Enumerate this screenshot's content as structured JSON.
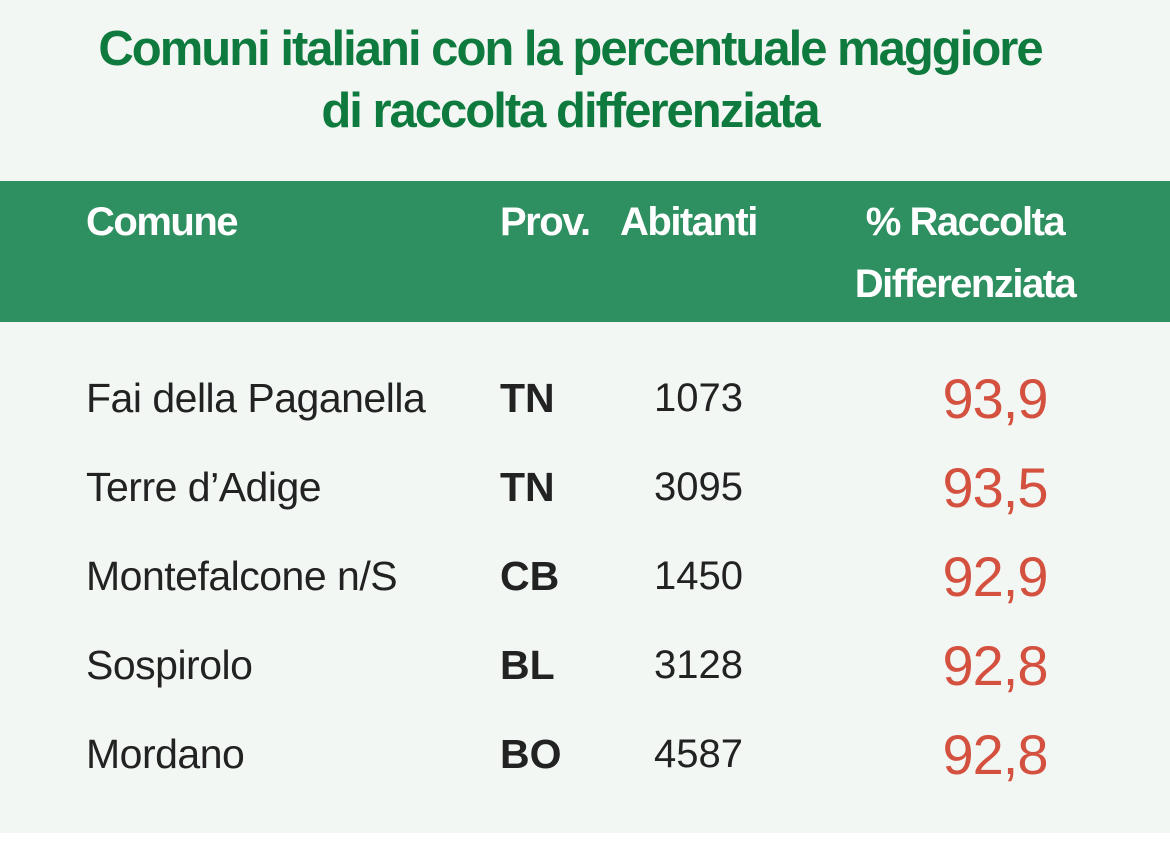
{
  "chart_data": {
    "type": "table",
    "title": "Comuni italiani con la percentuale maggiore di raccolta differenziata",
    "title_lines": [
      "Comuni italiani con la percentuale maggiore",
      "di raccolta differenziata"
    ],
    "columns": [
      "Comune",
      "Prov.",
      "Abitanti",
      "% Raccolta Differenziata"
    ],
    "percent_header_lines": [
      "% Raccolta",
      "Differenziata"
    ],
    "rows": [
      {
        "comune": "Fai della Paganella",
        "prov": "TN",
        "abitanti": "1073",
        "percentuale": "93,9"
      },
      {
        "comune": "Terre d’Adige",
        "prov": "TN",
        "abitanti": "3095",
        "percentuale": "93,5"
      },
      {
        "comune": "Montefalcone n/S",
        "prov": "CB",
        "abitanti": "1450",
        "percentuale": "92,9"
      },
      {
        "comune": "Sospirolo",
        "prov": "BL",
        "abitanti": "3128",
        "percentuale": "92,8"
      },
      {
        "comune": "Mordano",
        "prov": "BO",
        "abitanti": "4587",
        "percentuale": "92,8"
      }
    ]
  },
  "colors": {
    "title": "#0e7a3e",
    "header_band": "#2e8f60",
    "header_text": "#ffffff",
    "background": "#f2f7f4",
    "percent_value": "#d45140",
    "body_text": "#222222"
  }
}
